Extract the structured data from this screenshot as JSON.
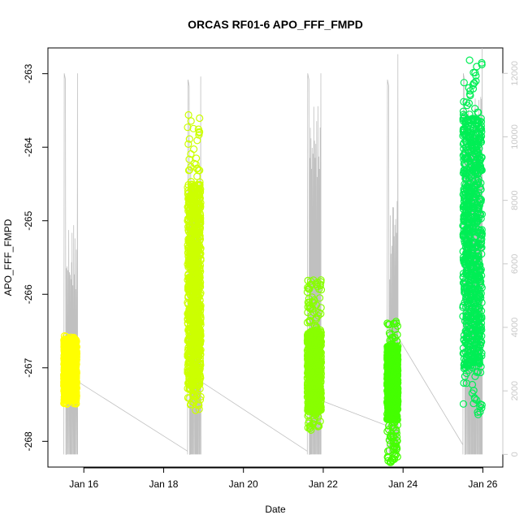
{
  "chart_data": {
    "type": "scatter",
    "title": "ORCAS RF01-6 APO_FFF_FMPD",
    "xlabel": "Date",
    "ylabel": "APO_FFF_FMPD",
    "x_ticks": [
      "Jan 16",
      "Jan 18",
      "Jan 20",
      "Jan 22",
      "Jan 24",
      "Jan 26"
    ],
    "x_tick_values": [
      16,
      18,
      20,
      22,
      24,
      26
    ],
    "xlim": [
      15.1,
      26.5
    ],
    "ylim": [
      -268.35,
      -262.65
    ],
    "y_ticks": [
      -268,
      -267,
      -266,
      -265,
      -264,
      -263
    ],
    "y2lim": [
      -400,
      12800
    ],
    "y2_ticks": [
      0,
      2000,
      4000,
      6000,
      8000,
      10000,
      12000
    ],
    "grid": false,
    "colors": {
      "altitude_line": "#c0c0c0",
      "flights": [
        "#ffff00",
        "#ccff00",
        "#88ff00",
        "#44ff00",
        "#00ee55"
      ]
    },
    "series": [
      {
        "flight": 1,
        "color": "#ffff00",
        "x_range": [
          15.5,
          15.82
        ],
        "y_lower": -267.45,
        "y_upper": -266.6,
        "values_y_range": [
          -267.5,
          -266.55
        ]
      },
      {
        "flight": 2,
        "color": "#ccff00",
        "x_range": [
          18.6,
          18.93
        ],
        "y_lower": -267.3,
        "y_upper": -264.5,
        "values_y_range": [
          -267.6,
          -263.55
        ]
      },
      {
        "flight": 3,
        "color": "#88ff00",
        "x_range": [
          21.6,
          21.95
        ],
        "y_lower": -267.6,
        "y_upper": -266.5,
        "values_y_range": [
          -267.85,
          -265.8
        ]
      },
      {
        "flight": 4,
        "color": "#44ff00",
        "x_range": [
          23.6,
          23.87
        ],
        "y_lower": -267.7,
        "y_upper": -266.7,
        "values_y_range": [
          -268.3,
          -266.35
        ]
      },
      {
        "flight": 5,
        "color": "#00ee55",
        "x_range": [
          25.5,
          25.98
        ],
        "y_lower": -267.0,
        "y_upper": -263.6,
        "values_y_range": [
          -267.65,
          -262.8
        ]
      }
    ],
    "altitude": {
      "axis": "right",
      "flights": [
        {
          "t": [
            15.5,
            15.58,
            15.84
          ],
          "peaks": [
            12000,
            7500,
            12000
          ]
        },
        {
          "t": [
            18.6,
            18.66,
            18.93
          ],
          "peaks": [
            11800,
            9500,
            11900
          ]
        },
        {
          "t": [
            21.6,
            21.66,
            21.94
          ],
          "peaks": [
            12000,
            11000,
            12000
          ]
        },
        {
          "t": [
            23.6,
            23.72,
            23.87
          ],
          "peaks": [
            11800,
            8000,
            12600
          ]
        },
        {
          "t": [
            25.5,
            25.6,
            25.98
          ],
          "peaks": [
            12000,
            11500,
            12800
          ]
        }
      ],
      "ferry_lines": [
        [
          15.84,
          2300,
          18.6,
          100
        ],
        [
          18.93,
          2300,
          21.6,
          100
        ],
        [
          21.94,
          1700,
          23.6,
          900
        ],
        [
          23.87,
          3700,
          25.5,
          300
        ]
      ]
    }
  }
}
